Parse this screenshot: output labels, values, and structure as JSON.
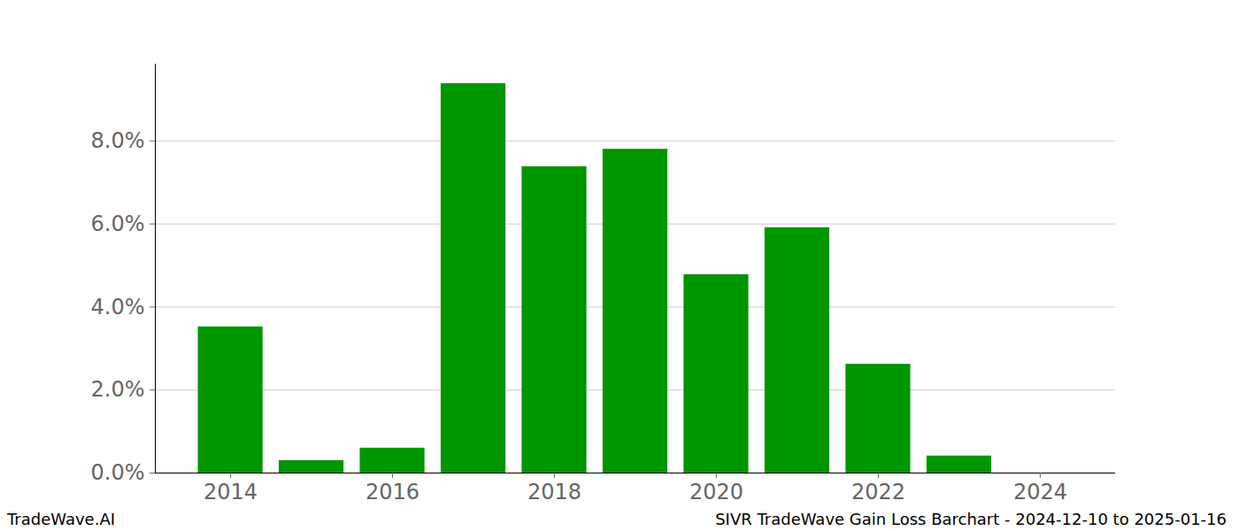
{
  "chart_data": {
    "type": "bar",
    "title": "SIVR TradeWave Gain Loss Barchart - 2024-12-10 to 2025-01-16",
    "source": "TradeWave.AI",
    "x": [
      2014,
      2015,
      2016,
      2017,
      2018,
      2019,
      2020,
      2021,
      2022,
      2023,
      2024
    ],
    "values": [
      3.52,
      0.3,
      0.6,
      9.38,
      7.38,
      7.8,
      4.78,
      5.91,
      2.62,
      0.41,
      0
    ],
    "color": "#009600",
    "xlim": [
      2013.07,
      2024.93
    ],
    "xticks": [
      2014,
      2016,
      2018,
      2020,
      2022,
      2024
    ],
    "ylim": [
      0,
      9.85
    ],
    "yticks": [
      {
        "value": 0,
        "label": "0.0%"
      },
      {
        "value": 2,
        "label": "2.0%"
      },
      {
        "value": 4,
        "label": "4.0%"
      },
      {
        "value": 6,
        "label": "6.0%"
      },
      {
        "value": 8,
        "label": "8.0%"
      }
    ],
    "grid": true
  }
}
